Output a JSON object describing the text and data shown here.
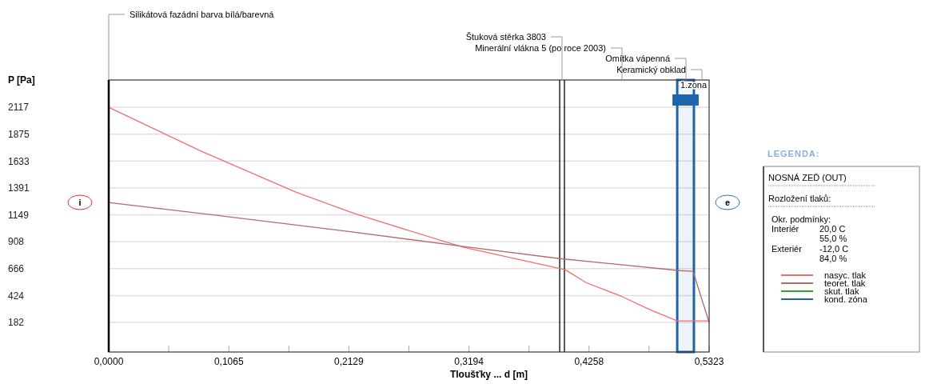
{
  "chart_data": {
    "type": "line",
    "xlabel": "Tloušťky ... d [m]",
    "ylabel": "P [Pa]",
    "legend_title": "LEGENDA:",
    "xlim": [
      0,
      0.5323
    ],
    "ylim": [
      -84,
      2362
    ],
    "xticks": [
      {
        "value": 0,
        "label": "0,0000"
      },
      {
        "value": 0.0532,
        "label": null
      },
      {
        "value": 0.1065,
        "label": "0,1065"
      },
      {
        "value": 0.1597,
        "label": null
      },
      {
        "value": 0.2129,
        "label": "0,2129"
      },
      {
        "value": 0.2661,
        "label": null
      },
      {
        "value": 0.3194,
        "label": "0,3194"
      },
      {
        "value": 0.3726,
        "label": null
      },
      {
        "value": 0.4258,
        "label": "0,4258"
      },
      {
        "value": 0.479,
        "label": null
      },
      {
        "value": 0.5323,
        "label": "0,5323"
      }
    ],
    "yticks": [
      182,
      424,
      666,
      908,
      1149,
      1391,
      1633,
      1875,
      2117
    ],
    "grid": "y",
    "legend": "right",
    "series": [
      {
        "name": "nasyc. tlak",
        "color": "#f07070",
        "x": [
          0,
          0.0822,
          0.1659,
          0.2183,
          0.3005,
          0.3147,
          0.4047,
          0.4232,
          0.4543,
          0.4799,
          0.504,
          0.5323
        ],
        "values": [
          2117,
          1721,
          1354,
          1159,
          900,
          857,
          656,
          540,
          418,
          296,
          195,
          195
        ]
      },
      {
        "name": "teoret. tlak",
        "color": "#b86a6a",
        "x": [
          0,
          0.107,
          0.2129,
          0.3147,
          0.3998,
          0.5061,
          0.5181,
          0.5323
        ],
        "values": [
          1260,
          1131,
          1000,
          864,
          756,
          648,
          641,
          180
        ]
      },
      {
        "name": "skut. tlak",
        "color": "#22aa22"
      }
    ],
    "ref_lines": [
      {
        "axis": "x",
        "value": 0.3998,
        "color": "#000000"
      },
      {
        "axis": "x",
        "value": 0.404,
        "color": "#000000"
      }
    ],
    "bands": [
      {
        "axis": "x",
        "from": 0.504,
        "to": 0.5188,
        "label": "1.zona",
        "color": "#1f64a8"
      }
    ],
    "annotations": [
      "Silikátová fazádní barva bílá/barevná",
      "Štuková stěrka 3803",
      "Minerální vlákna 5 (po roce 2003)",
      "Omítka vápenná",
      "Keramický obklad",
      "kond. zóna",
      "NOSNÁ ZEĎ (OUT)",
      "Rozložení tlaků:",
      "Okr. podmínky:",
      "Interiér",
      "20,0 C",
      "55,0 %",
      "Exteriér",
      "-12,0 C",
      "84,0 %",
      "i",
      "e"
    ]
  }
}
